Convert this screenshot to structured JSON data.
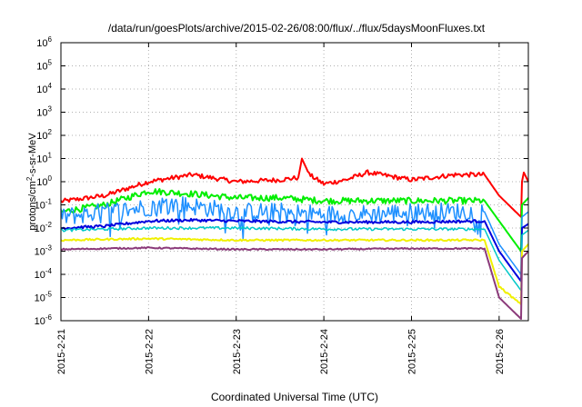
{
  "chart_data": {
    "type": "line",
    "title": "/data/run/goesPlots/archive/2015-02-26/08:00/flux/../flux/5daysMoonFluxes.txt",
    "xlabel": "Coordinated Universal Time (UTC)",
    "ylabel": {
      "prefix": "protons/cm",
      "sup": "2",
      "suffix": "-s-sr-MeV"
    },
    "yscale": "log",
    "ylim": [
      1e-06,
      1000000.0
    ],
    "y_ticks": [
      {
        "value": 1e-06,
        "base": "10",
        "exp": "-6"
      },
      {
        "value": 1e-05,
        "base": "10",
        "exp": "-5"
      },
      {
        "value": 0.0001,
        "base": "10",
        "exp": "-4"
      },
      {
        "value": 0.001,
        "base": "10",
        "exp": "-3"
      },
      {
        "value": 0.01,
        "base": "10",
        "exp": "-2"
      },
      {
        "value": 0.1,
        "base": "10",
        "exp": "-1"
      },
      {
        "value": 1.0,
        "base": "10",
        "exp": "0"
      },
      {
        "value": 10.0,
        "base": "10",
        "exp": "1"
      },
      {
        "value": 100.0,
        "base": "10",
        "exp": "2"
      },
      {
        "value": 1000.0,
        "base": "10",
        "exp": "3"
      },
      {
        "value": 10000.0,
        "base": "10",
        "exp": "4"
      },
      {
        "value": 100000.0,
        "base": "10",
        "exp": "5"
      },
      {
        "value": 1000000.0,
        "base": "10",
        "exp": "6"
      }
    ],
    "xlim": [
      "2015-02-21",
      "2015-02-26 08:00"
    ],
    "x_ticks": [
      "2015-2-21",
      "2015-2-22",
      "2015-2-23",
      "2015-2-24",
      "2015-2-25",
      "2015-2-26"
    ],
    "grid": true,
    "series": [
      {
        "color": "#ff0000",
        "stroke": 2,
        "noise": 0.1,
        "points": [
          [
            "2015-02-21 00:00",
            0.14
          ],
          [
            "2015-02-21 12:00",
            0.25
          ],
          [
            "2015-02-22 00:00",
            1.0
          ],
          [
            "2015-02-22 12:00",
            2.0
          ],
          [
            "2015-02-23 00:00",
            1.0
          ],
          [
            "2015-02-23 12:00",
            1.2
          ],
          [
            "2015-02-23 17:00",
            1.5
          ],
          [
            "2015-02-23 18:00",
            10
          ],
          [
            "2015-02-23 20:00",
            2.0
          ],
          [
            "2015-02-24 00:00",
            0.8
          ],
          [
            "2015-02-24 06:00",
            1.2
          ],
          [
            "2015-02-24 12:00",
            2.5
          ],
          [
            "2015-02-25 00:00",
            1.2
          ],
          [
            "2015-02-25 12:00",
            2.0
          ],
          [
            "2015-02-25 20:00",
            2.0
          ],
          [
            "2015-02-26 00:00",
            0.25
          ],
          [
            "2015-02-26 06:00",
            0.03
          ],
          [
            "2015-02-26 06:15",
            1.0
          ],
          [
            "2015-02-26 06:45",
            2.5
          ],
          [
            "2015-02-26 08:00",
            1.0
          ]
        ]
      },
      {
        "color": "#00ee00",
        "stroke": 2,
        "noise": 0.14,
        "points": [
          [
            "2015-02-21 00:00",
            0.05
          ],
          [
            "2015-02-21 12:00",
            0.1
          ],
          [
            "2015-02-22 00:00",
            0.4
          ],
          [
            "2015-02-22 12:00",
            0.3
          ],
          [
            "2015-02-23 00:00",
            0.2
          ],
          [
            "2015-02-23 12:00",
            0.2
          ],
          [
            "2015-02-24 00:00",
            0.15
          ],
          [
            "2015-02-24 12:00",
            0.15
          ],
          [
            "2015-02-25 00:00",
            0.15
          ],
          [
            "2015-02-25 20:00",
            0.15
          ],
          [
            "2015-02-26 00:00",
            0.02
          ],
          [
            "2015-02-26 06:00",
            0.001
          ],
          [
            "2015-02-26 06:15",
            0.1
          ],
          [
            "2015-02-26 08:00",
            0.2
          ]
        ]
      },
      {
        "color": "#1e90ff",
        "stroke": 1.5,
        "noise": 0.4,
        "points": [
          [
            "2015-02-21 00:00",
            0.03
          ],
          [
            "2015-02-21 12:00",
            0.05
          ],
          [
            "2015-02-22 00:00",
            0.08
          ],
          [
            "2015-02-22 06:00",
            0.12
          ],
          [
            "2015-02-23 00:00",
            0.05
          ],
          [
            "2015-02-23 12:00",
            0.05
          ],
          [
            "2015-02-24 00:00",
            0.04
          ],
          [
            "2015-02-24 12:00",
            0.04
          ],
          [
            "2015-02-25 00:00",
            0.05
          ],
          [
            "2015-02-25 20:00",
            0.05
          ],
          [
            "2015-02-26 00:00",
            0.002
          ],
          [
            "2015-02-26 06:00",
            0.0001
          ],
          [
            "2015-02-26 06:15",
            0.03
          ],
          [
            "2015-02-26 08:00",
            0.05
          ]
        ]
      },
      {
        "color": "#0000dd",
        "stroke": 2,
        "noise": 0.06,
        "points": [
          [
            "2015-02-21 00:00",
            0.01
          ],
          [
            "2015-02-21 12:00",
            0.012
          ],
          [
            "2015-02-22 00:00",
            0.02
          ],
          [
            "2015-02-22 12:00",
            0.022
          ],
          [
            "2015-02-23 00:00",
            0.02
          ],
          [
            "2015-02-24 00:00",
            0.018
          ],
          [
            "2015-02-25 00:00",
            0.018
          ],
          [
            "2015-02-25 20:00",
            0.02
          ],
          [
            "2015-02-26 00:00",
            0.001
          ],
          [
            "2015-02-26 06:00",
            5e-05
          ],
          [
            "2015-02-26 06:15",
            0.01
          ],
          [
            "2015-02-26 08:00",
            0.015
          ]
        ]
      },
      {
        "color": "#00c8c8",
        "stroke": 1.5,
        "noise": 0.06,
        "points": [
          [
            "2015-02-21 00:00",
            0.008
          ],
          [
            "2015-02-22 00:00",
            0.01
          ],
          [
            "2015-02-23 00:00",
            0.01
          ],
          [
            "2015-02-24 00:00",
            0.009
          ],
          [
            "2015-02-25 00:00",
            0.009
          ],
          [
            "2015-02-25 20:00",
            0.009
          ],
          [
            "2015-02-26 00:00",
            0.0004
          ],
          [
            "2015-02-26 06:00",
            2e-05
          ],
          [
            "2015-02-26 06:15",
            0.005
          ],
          [
            "2015-02-26 08:00",
            0.008
          ]
        ]
      },
      {
        "color": "#f0f000",
        "stroke": 2,
        "noise": 0.04,
        "points": [
          [
            "2015-02-21 00:00",
            0.003
          ],
          [
            "2015-02-22 00:00",
            0.0035
          ],
          [
            "2015-02-23 00:00",
            0.003
          ],
          [
            "2015-02-24 00:00",
            0.003
          ],
          [
            "2015-02-25 00:00",
            0.003
          ],
          [
            "2015-02-25 20:00",
            0.003
          ],
          [
            "2015-02-26 00:00",
            3e-05
          ],
          [
            "2015-02-26 06:00",
            5e-06
          ],
          [
            "2015-02-26 06:15",
            0.001
          ],
          [
            "2015-02-26 08:00",
            0.002
          ]
        ]
      },
      {
        "color": "#8b3a7a",
        "stroke": 2,
        "noise": 0.03,
        "points": [
          [
            "2015-02-21 00:00",
            0.0012
          ],
          [
            "2015-02-22 00:00",
            0.0014
          ],
          [
            "2015-02-23 00:00",
            0.0012
          ],
          [
            "2015-02-24 00:00",
            0.0012
          ],
          [
            "2015-02-25 00:00",
            0.0013
          ],
          [
            "2015-02-25 20:00",
            0.0013
          ],
          [
            "2015-02-26 00:00",
            1e-05
          ],
          [
            "2015-02-26 06:00",
            1.2e-06
          ],
          [
            "2015-02-26 06:15",
            0.0005
          ],
          [
            "2015-02-26 08:00",
            0.001
          ]
        ]
      }
    ]
  }
}
